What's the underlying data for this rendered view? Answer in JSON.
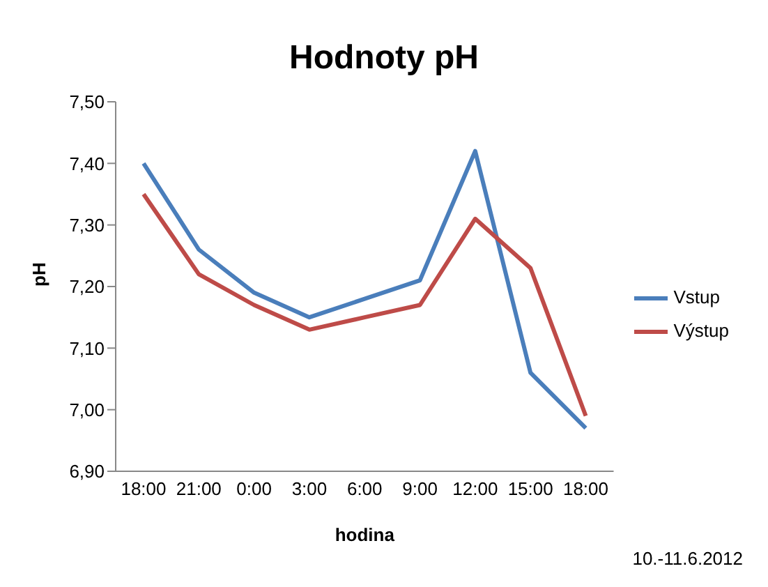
{
  "chart_data": {
    "type": "line",
    "title": "Hodnoty pH",
    "xlabel": "hodina",
    "ylabel": "pH",
    "categories": [
      "18:00",
      "21:00",
      "0:00",
      "3:00",
      "6:00",
      "9:00",
      "12:00",
      "15:00",
      "18:00"
    ],
    "series": [
      {
        "name": "Vstup",
        "color": "#4a7ebb",
        "values": [
          7.4,
          7.26,
          7.19,
          7.15,
          7.18,
          7.21,
          7.42,
          7.06,
          6.97
        ]
      },
      {
        "name": "Výstup",
        "color": "#be4b48",
        "values": [
          7.35,
          7.22,
          7.17,
          7.13,
          7.15,
          7.17,
          7.31,
          7.23,
          6.99
        ]
      }
    ],
    "ylim": [
      6.9,
      7.5
    ],
    "yticks": [
      {
        "value": 6.9,
        "label": "6,90"
      },
      {
        "value": 7.0,
        "label": "7,00"
      },
      {
        "value": 7.1,
        "label": "7,10"
      },
      {
        "value": 7.2,
        "label": "7,20"
      },
      {
        "value": 7.3,
        "label": "7,30"
      },
      {
        "value": 7.4,
        "label": "7,40"
      },
      {
        "value": 7.5,
        "label": "7,50"
      }
    ],
    "grid": false,
    "legend": "right",
    "marker": "none",
    "line_style": "solid",
    "annotations": [
      "10.-11.6.2012"
    ]
  }
}
